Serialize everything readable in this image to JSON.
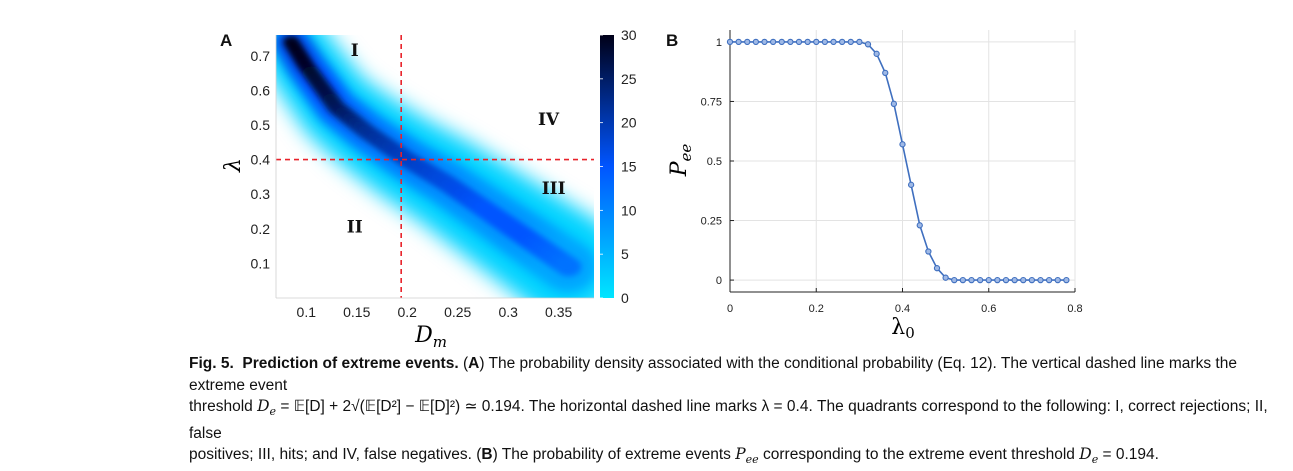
{
  "figure": {
    "panel_a_letter": "A",
    "panel_b_letter": "B"
  },
  "chart_data": [
    {
      "type": "heatmap",
      "xlabel": "Dm",
      "ylabel": "λ",
      "xlim": [
        0.07,
        0.385
      ],
      "ylim": [
        0,
        0.76
      ],
      "xticks": [
        "0.1",
        "0.15",
        "0.2",
        "0.25",
        "0.3",
        "0.35"
      ],
      "xtick_values": [
        0.1,
        0.15,
        0.2,
        0.25,
        0.3,
        0.35
      ],
      "yticks": [
        "0.1",
        "0.2",
        "0.3",
        "0.4",
        "0.5",
        "0.6",
        "0.7"
      ],
      "ytick_values": [
        0.1,
        0.2,
        0.3,
        0.4,
        0.5,
        0.6,
        0.7
      ],
      "colorbar": {
        "ticks": [
          "0",
          "5",
          "10",
          "15",
          "20",
          "25",
          "30"
        ],
        "tick_values": [
          0,
          5,
          10,
          15,
          20,
          25,
          30
        ],
        "range": [
          0,
          30
        ],
        "colors": [
          "#00e6ff",
          "#0055ff",
          "#000018"
        ]
      },
      "ridge": [
        {
          "x": 0.085,
          "y": 0.74,
          "peak": 30
        },
        {
          "x": 0.1,
          "y": 0.67,
          "peak": 29
        },
        {
          "x": 0.13,
          "y": 0.55,
          "peak": 26
        },
        {
          "x": 0.16,
          "y": 0.48,
          "peak": 22
        },
        {
          "x": 0.2,
          "y": 0.4,
          "peak": 19
        },
        {
          "x": 0.24,
          "y": 0.33,
          "peak": 17
        },
        {
          "x": 0.28,
          "y": 0.25,
          "peak": 15
        },
        {
          "x": 0.32,
          "y": 0.17,
          "peak": 15
        },
        {
          "x": 0.36,
          "y": 0.09,
          "peak": 12
        }
      ],
      "threshold_lines": {
        "vertical_x": 0.194,
        "horizontal_y": 0.4,
        "color": "#e8222a"
      },
      "quadrant_labels": [
        {
          "text": "I",
          "x": 0.148,
          "y": 0.7
        },
        {
          "text": "II",
          "x": 0.148,
          "y": 0.19
        },
        {
          "text": "III",
          "x": 0.345,
          "y": 0.3
        },
        {
          "text": "IV",
          "x": 0.34,
          "y": 0.5
        }
      ]
    },
    {
      "type": "line",
      "xlabel": "λ0",
      "ylabel": "Pee",
      "xlim": [
        0,
        0.8
      ],
      "ylim": [
        -0.05,
        1.05
      ],
      "xticks": [
        "0",
        "0.2",
        "0.4",
        "0.6",
        "0.8"
      ],
      "xtick_values": [
        0,
        0.2,
        0.4,
        0.6,
        0.8
      ],
      "yticks": [
        "0",
        "0.25",
        "0.5",
        "0.75",
        "1"
      ],
      "ytick_values": [
        0,
        0.25,
        0.5,
        0.75,
        1
      ],
      "grid": true,
      "line_color": "#3f6fbf",
      "x": [
        0,
        0.02,
        0.04,
        0.06,
        0.08,
        0.1,
        0.12,
        0.14,
        0.16,
        0.18,
        0.2,
        0.22,
        0.24,
        0.26,
        0.28,
        0.3,
        0.32,
        0.34,
        0.36,
        0.38,
        0.4,
        0.42,
        0.44,
        0.46,
        0.48,
        0.5,
        0.52,
        0.54,
        0.56,
        0.58,
        0.6,
        0.62,
        0.64,
        0.66,
        0.68,
        0.7,
        0.72,
        0.74,
        0.76,
        0.78
      ],
      "y": [
        1,
        1,
        1,
        1,
        1,
        1,
        1,
        1,
        1,
        1,
        1,
        1,
        1,
        1,
        1,
        1,
        0.99,
        0.95,
        0.87,
        0.74,
        0.57,
        0.4,
        0.23,
        0.12,
        0.05,
        0.01,
        0,
        0,
        0,
        0,
        0,
        0,
        0,
        0,
        0,
        0,
        0,
        0,
        0,
        0
      ]
    }
  ],
  "caption": {
    "fig_label": "Fig. 5.",
    "title": "Prediction of extreme events.",
    "line1_a": "(",
    "line1_b": "A",
    "line1_c": ") The probability density associated with the conditional probability (Eq. 12). The vertical dashed line marks the extreme event",
    "line2_a": "threshold",
    "line2_b": "= 𝔼[D] + 2√(𝔼[D²] − 𝔼[D]²) ≃ 0.194. The horizontal dashed line marks λ = 0.4. The quadrants correspond to the following: I, correct rejections; II, false",
    "line3_a": "positives; III, hits; and IV, false negatives. (",
    "line3_b": "B",
    "line3_c": ") The probability of extreme events",
    "line3_d": "corresponding to the extreme event threshold",
    "line3_e": "= 0.194."
  }
}
